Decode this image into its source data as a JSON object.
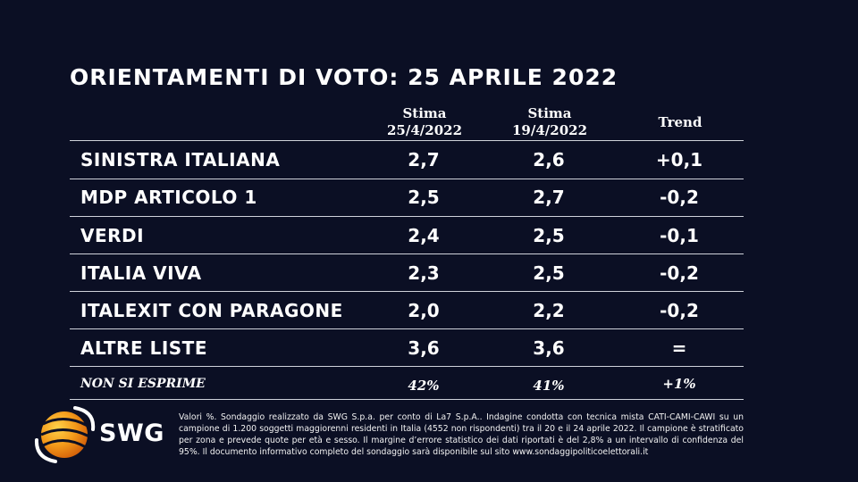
{
  "title": "ORIENTAMENTI DI VOTO: 25 APRILE 2022",
  "chart_data": {
    "type": "table",
    "columns": [
      {
        "line1": "Stima",
        "line2": "25/4/2022"
      },
      {
        "line1": "Stima",
        "line2": "19/4/2022"
      },
      {
        "line1": "Trend",
        "line2": ""
      }
    ],
    "rows": [
      {
        "party": "SINISTRA ITALIANA",
        "stima_25": "2,7",
        "stima_19": "2,6",
        "trend": "+0,1"
      },
      {
        "party": "MDP ARTICOLO 1",
        "stima_25": "2,5",
        "stima_19": "2,7",
        "trend": "-0,2"
      },
      {
        "party": "VERDI",
        "stima_25": "2,4",
        "stima_19": "2,5",
        "trend": "-0,1"
      },
      {
        "party": "ITALIA VIVA",
        "stima_25": "2,3",
        "stima_19": "2,5",
        "trend": "-0,2"
      },
      {
        "party": "ITALEXIT CON PARAGONE",
        "stima_25": "2,0",
        "stima_19": "2,2",
        "trend": "-0,2"
      },
      {
        "party": "ALTRE LISTE",
        "stima_25": "3,6",
        "stima_19": "3,6",
        "trend": "="
      }
    ],
    "non_si_esprime": {
      "label": "NON SI ESPRIME",
      "stima_25": "42%",
      "stima_19": "41%",
      "trend": "+1%"
    }
  },
  "logo": {
    "text": "SWG"
  },
  "footnote": "Valori %. Sondaggio realizzato da SWG S.p.a. per conto di La7 S.p.A.. Indagine condotta con tecnica mista CATI-CAMI-CAWI su un campione di 1.200 soggetti maggiorenni residenti in Italia (4552 non rispondenti) tra il 20 e il 24 aprile 2022. Il campione è stratificato per zona e prevede quote per età e sesso. Il margine d’errore statistico dei dati riportati è del 2,8% a un intervallo di confidenza del 95%. Il documento informativo completo del sondaggio sarà disponibile sul sito www.sondaggipoliticoelettorali.it"
}
